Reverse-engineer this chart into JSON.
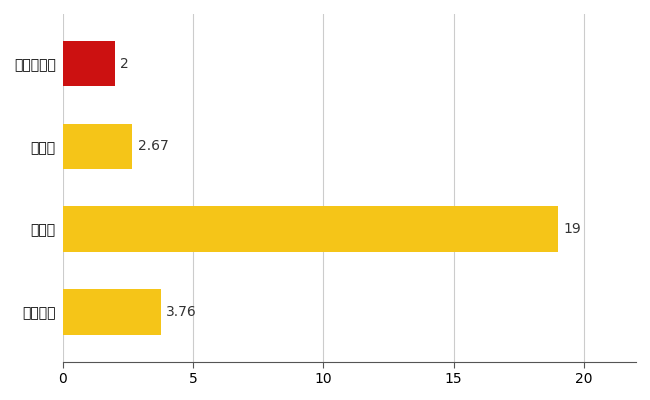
{
  "categories": [
    "かつらぎ町",
    "県平均",
    "県最大",
    "全国平均"
  ],
  "values": [
    2,
    2.67,
    19,
    3.76
  ],
  "labels": [
    "2",
    "2.67",
    "19",
    "3.76"
  ],
  "bar_colors": [
    "#cc1111",
    "#f5c518",
    "#f5c518",
    "#f5c518"
  ],
  "xlim": [
    0,
    22
  ],
  "xticks": [
    0,
    5,
    10,
    15,
    20
  ],
  "background_color": "#ffffff",
  "grid_color": "#cccccc",
  "bar_height": 0.55,
  "label_fontsize": 10,
  "tick_fontsize": 10,
  "figsize": [
    6.5,
    4.0
  ],
  "dpi": 100
}
